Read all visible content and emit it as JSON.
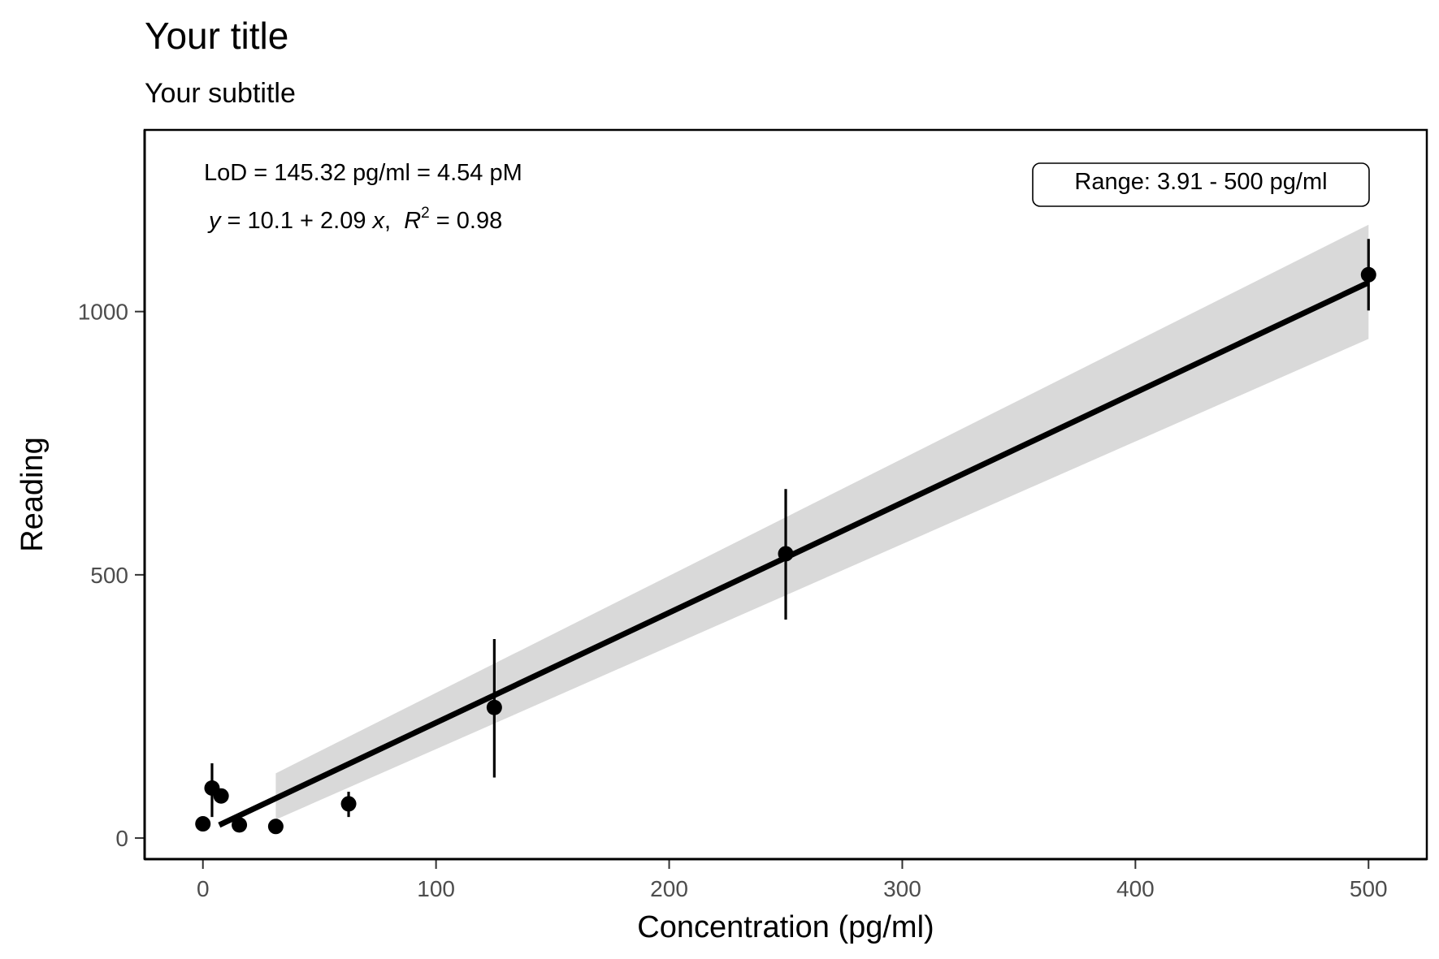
{
  "chart_data": {
    "type": "scatter",
    "title": "Your title",
    "subtitle": "Your subtitle",
    "xlabel": "Concentration (pg/ml)",
    "ylabel": "Reading",
    "xlim": [
      -25,
      525
    ],
    "ylim": [
      -40,
      1345
    ],
    "x_ticks": [
      0,
      100,
      200,
      300,
      400,
      500
    ],
    "y_ticks": [
      0,
      500,
      1000
    ],
    "grid": false,
    "legend": "none",
    "colors": {
      "points": "#000000",
      "fit_line": "#000000",
      "confidence_band": "#d9d9d9",
      "text": "#000000",
      "tick_text": "#4d4d4d"
    },
    "points": [
      {
        "x": 0,
        "y": 27
      },
      {
        "x": 3.91,
        "y": 95,
        "err_low": 40,
        "err_high": 142
      },
      {
        "x": 7.81,
        "y": 80
      },
      {
        "x": 15.63,
        "y": 25
      },
      {
        "x": 31.25,
        "y": 22
      },
      {
        "x": 62.5,
        "y": 65,
        "err_low": 40,
        "err_high": 88
      },
      {
        "x": 125,
        "y": 248,
        "err_low": 115,
        "err_high": 378
      },
      {
        "x": 250,
        "y": 540,
        "err_low": 415,
        "err_high": 663
      },
      {
        "x": 500,
        "y": 1070,
        "err_low": 1002,
        "err_high": 1138
      }
    ],
    "fit": {
      "intercept": 10.1,
      "slope": 2.09,
      "x_range": [
        7,
        500
      ]
    },
    "confidence_band": [
      {
        "x": 31.25,
        "low": 35,
        "high": 123
      },
      {
        "x": 500,
        "low": 948,
        "high": 1165
      }
    ],
    "annotations": {
      "lod": "LoD = 145.32 pg/ml = 4.54 pM",
      "equation_lhs": "y",
      "equation_mid": " = 10.1 + 2.09 ",
      "equation_x": "x",
      "equation_sep": ",  ",
      "equation_r": "R",
      "equation_sup": "2",
      "equation_rhs": " = 0.98",
      "range_label": "Range: 3.91 - 500 pg/ml"
    }
  }
}
